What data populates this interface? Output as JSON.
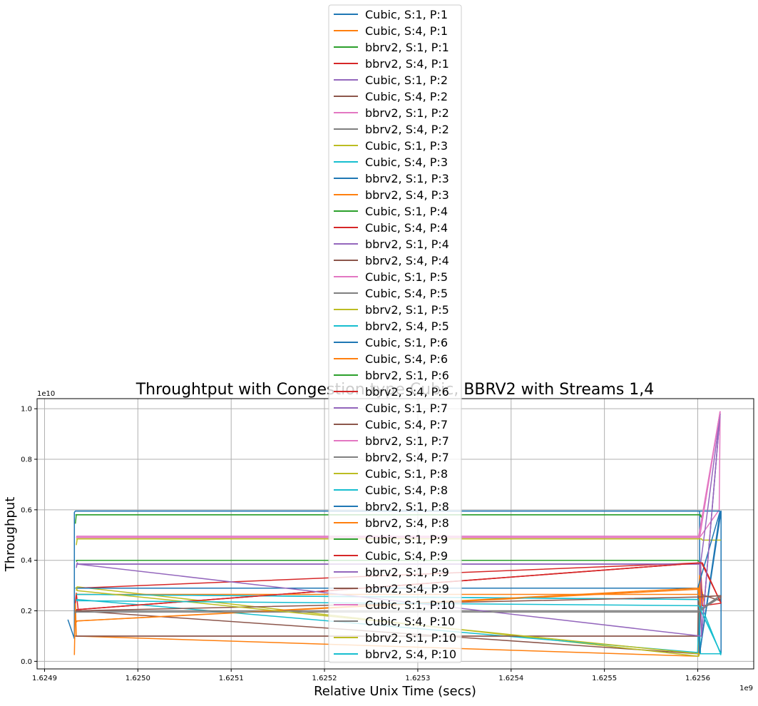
{
  "chart_data": {
    "type": "line",
    "title": "Throughtput with Congestion type Cubic, BBRV2 with Streams 1,4",
    "xlabel": "Relative Unix Time (secs)",
    "ylabel": "Throughput",
    "x_offset_label": "1e9",
    "y_offset_label": "1e10",
    "xlim": [
      1624892000,
      1625660000
    ],
    "ylim": [
      -0.03,
      1.04
    ],
    "x_ticks": [
      1624900000,
      1625000000,
      1625100000,
      1625200000,
      1625300000,
      1625400000,
      1625500000,
      1625600000
    ],
    "x_tick_labels": [
      "1.6249",
      "1.6250",
      "1.6251",
      "1.6252",
      "1.6253",
      "1.6254",
      "1.6255",
      "1.6256"
    ],
    "y_ticks": [
      0.0,
      0.2,
      0.4,
      0.6,
      0.8,
      1.0
    ],
    "y_tick_labels": [
      "0.0",
      "0.2",
      "0.4",
      "0.6",
      "0.8",
      "1.0"
    ],
    "grid": true,
    "legend_position": "upper center",
    "series": [
      {
        "name": "Cubic, S:1, P:1",
        "color": "#1f77b4",
        "x": [
          1624925000,
          1624932000,
          1624932000,
          1624933000,
          1625602000,
          1625602000,
          1625625000,
          1625625000
        ],
        "y": [
          0.165,
          0.09,
          0.59,
          0.595,
          0.595,
          0.03,
          0.595,
          0.03
        ]
      },
      {
        "name": "Cubic, S:4, P:1",
        "color": "#ff7f0e",
        "x": [
          1624932000,
          1624933000,
          1624934000,
          1625601000,
          1625602000,
          1625607000
        ],
        "y": [
          0.025,
          0.24,
          0.1,
          0.02,
          0.33,
          0.23
        ]
      },
      {
        "name": "bbrv2, S:1, P:1",
        "color": "#2ca02c",
        "x": [
          1624933000,
          1624934000,
          1624935000,
          1625603000,
          1625604000,
          1625605000
        ],
        "y": [
          0.545,
          0.58,
          0.58,
          0.58,
          0.57,
          0.58
        ]
      },
      {
        "name": "bbrv2, S:4, P:1",
        "color": "#d62728",
        "x": [
          1624933000,
          1624934000,
          1624936000,
          1625603000,
          1625605000,
          1625625000
        ],
        "y": [
          0.23,
          0.27,
          0.205,
          0.39,
          0.22,
          0.23
        ]
      },
      {
        "name": "Cubic, S:1, P:2",
        "color": "#9467bd",
        "x": [
          1624934000,
          1624935000,
          1624936000,
          1625602000,
          1625604000,
          1625624000
        ],
        "y": [
          0.37,
          0.39,
          0.385,
          0.385,
          0.1,
          0.98
        ]
      },
      {
        "name": "Cubic, S:4, P:2",
        "color": "#8c564b",
        "x": [
          1624933000,
          1624934000,
          1625602000,
          1625603000,
          1625604000,
          1625624000,
          1625625000
        ],
        "y": [
          0.1,
          0.1,
          0.1,
          0.25,
          0.265,
          0.24,
          0.26
        ]
      },
      {
        "name": "bbrv2, S:1, P:2",
        "color": "#e377c2",
        "x": [
          1624934000,
          1624935000,
          1625601000,
          1625602000,
          1625623000,
          1625624000
        ],
        "y": [
          0.49,
          0.495,
          0.495,
          0.49,
          0.6,
          0.99
        ]
      },
      {
        "name": "bbrv2, S:4, P:2",
        "color": "#7f7f7f",
        "x": [
          1624933000,
          1624934000,
          1625601000,
          1625602000,
          1625623000,
          1625624000
        ],
        "y": [
          0.19,
          0.195,
          0.195,
          0.2,
          0.25,
          0.26
        ]
      },
      {
        "name": "Cubic, S:1, P:3",
        "color": "#bcbd22",
        "x": [
          1624934000,
          1624935000,
          1625604000,
          1625605000,
          1625625000
        ],
        "y": [
          0.46,
          0.485,
          0.485,
          0.48,
          0.48
        ]
      },
      {
        "name": "Cubic, S:4, P:3",
        "color": "#17becf",
        "x": [
          1624934000,
          1624935000,
          1625601000,
          1625603000,
          1625624000,
          1625625000
        ],
        "y": [
          0.265,
          0.265,
          0.245,
          0.03,
          0.03,
          0.025
        ]
      },
      {
        "name": "bbrv2, S:1, P:3",
        "color": "#1f77b4",
        "x": [
          1624933000,
          1624934000,
          1625600000,
          1625602000,
          1625624000
        ],
        "y": [
          0.29,
          0.29,
          0.29,
          0.03,
          0.595
        ]
      },
      {
        "name": "bbrv2, S:4, P:3",
        "color": "#ff7f0e",
        "x": [
          1624934000,
          1624935000,
          1625600000,
          1625601000,
          1625603000
        ],
        "y": [
          0.155,
          0.16,
          0.285,
          0.29,
          0.22
        ]
      },
      {
        "name": "Cubic, S:1, P:4",
        "color": "#2ca02c",
        "x": [
          1624934000,
          1624935000,
          1625600000,
          1625601000
        ],
        "y": [
          0.395,
          0.4,
          0.4,
          0.395
        ]
      },
      {
        "name": "Cubic, S:4, P:4",
        "color": "#d62728",
        "x": [
          1624934000,
          1624935000,
          1625604000,
          1625605000,
          1625625000
        ],
        "y": [
          0.2,
          0.205,
          0.39,
          0.39,
          0.23
        ]
      },
      {
        "name": "bbrv2, S:1, P:4",
        "color": "#9467bd",
        "x": [
          1624934000,
          1624935000,
          1625603000,
          1625604000,
          1625624000
        ],
        "y": [
          0.38,
          0.385,
          0.385,
          0.1,
          0.98
        ]
      },
      {
        "name": "bbrv2, S:4, P:4",
        "color": "#8c564b",
        "x": [
          1624933000,
          1624934000,
          1625600000,
          1625601000,
          1625625000
        ],
        "y": [
          0.2,
          0.2,
          0.03,
          0.255,
          0.26
        ]
      },
      {
        "name": "Cubic, S:1, P:5",
        "color": "#e377c2",
        "x": [
          1624934000,
          1624935000,
          1625601000,
          1625602000,
          1625624000
        ],
        "y": [
          0.49,
          0.49,
          0.49,
          0.49,
          0.99
        ]
      },
      {
        "name": "Cubic, S:4, P:5",
        "color": "#7f7f7f",
        "x": [
          1624933000,
          1624934000,
          1625600000,
          1625601000,
          1625624000
        ],
        "y": [
          0.195,
          0.195,
          0.195,
          0.195,
          0.26
        ]
      },
      {
        "name": "bbrv2, S:1, P:5",
        "color": "#bcbd22",
        "x": [
          1624934000,
          1624935000,
          1625601000,
          1625602000
        ],
        "y": [
          0.28,
          0.295,
          0.02,
          0.03
        ]
      },
      {
        "name": "bbrv2, S:4, P:5",
        "color": "#17becf",
        "x": [
          1624934000,
          1624935000,
          1625600000,
          1625601000,
          1625625000
        ],
        "y": [
          0.24,
          0.245,
          0.035,
          0.22,
          0.03
        ]
      },
      {
        "name": "Cubic, S:1, P:6",
        "color": "#1f77b4",
        "x": [
          1624933000,
          1624934000,
          1625600000,
          1625601000,
          1625624000
        ],
        "y": [
          0.595,
          0.595,
          0.595,
          0.595,
          0.595
        ]
      },
      {
        "name": "Cubic, S:4, P:6",
        "color": "#ff7f0e",
        "x": [
          1624934000,
          1624935000,
          1625601000,
          1625602000,
          1625603000
        ],
        "y": [
          0.27,
          0.265,
          0.265,
          0.34,
          0.23
        ]
      },
      {
        "name": "bbrv2, S:1, P:6",
        "color": "#2ca02c",
        "x": [
          1624933000,
          1624934000,
          1625602000,
          1625604000
        ],
        "y": [
          0.58,
          0.58,
          0.58,
          0.57
        ]
      },
      {
        "name": "bbrv2, S:4, P:6",
        "color": "#d62728",
        "x": [
          1624934000,
          1624935000,
          1625603000,
          1625605000
        ],
        "y": [
          0.29,
          0.29,
          0.39,
          0.39
        ]
      },
      {
        "name": "Cubic, S:1, P:7",
        "color": "#9467bd",
        "x": [
          1624934000,
          1624935000,
          1625603000,
          1625624000
        ],
        "y": [
          0.385,
          0.385,
          0.385,
          0.98
        ]
      },
      {
        "name": "Cubic, S:4, P:7",
        "color": "#8c564b",
        "x": [
          1624933000,
          1624934000,
          1625600000,
          1625601000
        ],
        "y": [
          0.1,
          0.1,
          0.1,
          0.26
        ]
      },
      {
        "name": "bbrv2, S:1, P:7",
        "color": "#e377c2",
        "x": [
          1624934000,
          1624935000,
          1625601000,
          1625624000
        ],
        "y": [
          0.495,
          0.495,
          0.495,
          0.99
        ]
      },
      {
        "name": "bbrv2, S:4, P:7",
        "color": "#7f7f7f",
        "x": [
          1624933000,
          1624934000,
          1625600000,
          1625624000
        ],
        "y": [
          0.2,
          0.2,
          0.2,
          0.26
        ]
      },
      {
        "name": "Cubic, S:1, P:8",
        "color": "#bcbd22",
        "x": [
          1624934000,
          1624935000,
          1625604000,
          1625605000
        ],
        "y": [
          0.485,
          0.485,
          0.485,
          0.48
        ]
      },
      {
        "name": "Cubic, S:4, P:8",
        "color": "#17becf",
        "x": [
          1624934000,
          1624935000,
          1625601000,
          1625625000
        ],
        "y": [
          0.265,
          0.265,
          0.245,
          0.025
        ]
      },
      {
        "name": "bbrv2, S:1, P:8",
        "color": "#1f77b4",
        "x": [
          1624933000,
          1624934000,
          1625600000,
          1625624000
        ],
        "y": [
          0.29,
          0.29,
          0.29,
          0.595
        ]
      },
      {
        "name": "bbrv2, S:4, P:8",
        "color": "#ff7f0e",
        "x": [
          1624934000,
          1624935000,
          1625600000,
          1625603000
        ],
        "y": [
          0.16,
          0.16,
          0.29,
          0.22
        ]
      },
      {
        "name": "Cubic, S:1, P:9",
        "color": "#2ca02c",
        "x": [
          1624934000,
          1624935000,
          1625600000,
          1625601000
        ],
        "y": [
          0.4,
          0.4,
          0.4,
          0.395
        ]
      },
      {
        "name": "Cubic, S:4, P:9",
        "color": "#d62728",
        "x": [
          1624934000,
          1624935000,
          1625604000,
          1625625000
        ],
        "y": [
          0.205,
          0.205,
          0.39,
          0.23
        ]
      },
      {
        "name": "bbrv2, S:1, P:9",
        "color": "#9467bd",
        "x": [
          1624934000,
          1624935000,
          1625604000,
          1625624000
        ],
        "y": [
          0.385,
          0.385,
          0.1,
          0.98
        ]
      },
      {
        "name": "bbrv2, S:4, P:9",
        "color": "#8c564b",
        "x": [
          1624933000,
          1624934000,
          1625601000,
          1625625000
        ],
        "y": [
          0.2,
          0.2,
          0.255,
          0.26
        ]
      },
      {
        "name": "Cubic, S:1, P:10",
        "color": "#e377c2",
        "x": [
          1624934000,
          1624935000,
          1625602000,
          1625624000
        ],
        "y": [
          0.49,
          0.49,
          0.49,
          0.99
        ]
      },
      {
        "name": "Cubic, S:4, P:10",
        "color": "#7f7f7f",
        "x": [
          1624933000,
          1624934000,
          1625601000,
          1625624000
        ],
        "y": [
          0.195,
          0.195,
          0.195,
          0.26
        ]
      },
      {
        "name": "bbrv2, S:1, P:10",
        "color": "#bcbd22",
        "x": [
          1624934000,
          1624935000,
          1625602000
        ],
        "y": [
          0.295,
          0.28,
          0.03
        ]
      },
      {
        "name": "bbrv2, S:4, P:10",
        "color": "#17becf",
        "x": [
          1624934000,
          1624935000,
          1625601000,
          1625625000
        ],
        "y": [
          0.245,
          0.24,
          0.22,
          0.03
        ]
      }
    ]
  }
}
